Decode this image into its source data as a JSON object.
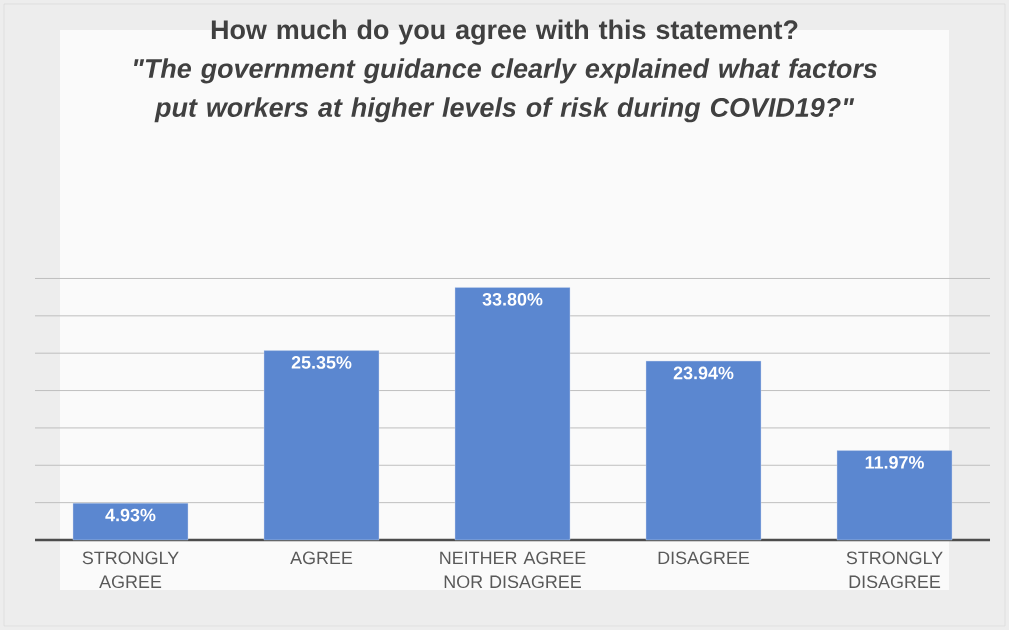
{
  "chart_data": {
    "type": "bar",
    "title": "How much do you agree with this statement?",
    "subtitle": "\"The government guidance clearly explained what factors put workers at higher levels of risk during COVID19?\"",
    "categories": [
      "STRONGLY AGREE",
      "AGREE",
      "NEITHER AGREE NOR DISAGREE",
      "DISAGREE",
      "STRONGLY DISAGREE"
    ],
    "values": [
      4.93,
      25.35,
      33.8,
      23.94,
      11.97
    ],
    "value_labels": [
      "4.93%",
      "25.35%",
      "33.80%",
      "23.94%",
      "11.97%"
    ],
    "color": "#5b87d0",
    "grid": "y",
    "tick_labels": "x"
  }
}
